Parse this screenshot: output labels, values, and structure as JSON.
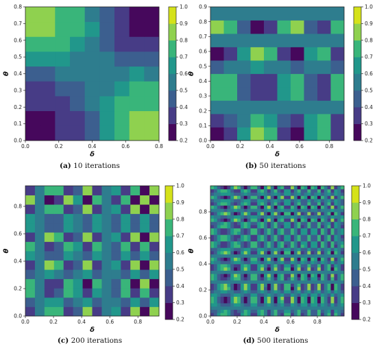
{
  "chart_data": [
    {
      "type": "heatmap",
      "caption_letter": "(a)",
      "caption_text": " 10 iterations",
      "xlabel": "δ",
      "ylabel": "θ",
      "xlim": [
        0,
        0.8
      ],
      "ylim": [
        0,
        0.8
      ],
      "x_ticks": [
        "0.0",
        "0.2",
        "0.4",
        "0.6",
        "0.8"
      ],
      "y_ticks": [
        "0.0",
        "0.1",
        "0.2",
        "0.3",
        "0.4",
        "0.5",
        "0.6",
        "0.7",
        "0.8"
      ],
      "colorbar_ticks": [
        "0.2",
        "0.3",
        "0.4",
        "0.5",
        "0.6",
        "0.7",
        "0.8",
        "0.9",
        "1.0"
      ],
      "colorbar_range": [
        0.2,
        1.0
      ],
      "cmap": "viridis",
      "grid_resolution": 10,
      "grid_size": 9
    },
    {
      "type": "heatmap",
      "caption_letter": "(b)",
      "caption_text": " 50 iterations",
      "xlabel": "δ",
      "ylabel": "θ",
      "xlim": [
        0,
        0.9
      ],
      "ylim": [
        0,
        0.9
      ],
      "x_ticks": [
        "0.0",
        "0.2",
        "0.4",
        "0.6",
        "0.8"
      ],
      "y_ticks": [
        "0.0",
        "0.1",
        "0.2",
        "0.3",
        "0.4",
        "0.5",
        "0.6",
        "0.7",
        "0.8",
        "0.9"
      ],
      "colorbar_ticks": [
        "0.2",
        "0.3",
        "0.4",
        "0.5",
        "0.6",
        "0.7",
        "0.8",
        "0.9",
        "1.0"
      ],
      "colorbar_range": [
        0.2,
        1.0
      ],
      "cmap": "viridis",
      "grid_resolution": 50,
      "grid_size": 10
    },
    {
      "type": "heatmap",
      "caption_letter": "(c)",
      "caption_text": " 200 iterations",
      "xlabel": "δ",
      "ylabel": "θ",
      "xlim": [
        0,
        0.95
      ],
      "ylim": [
        0,
        0.95
      ],
      "x_ticks": [
        "0.0",
        "0.2",
        "0.4",
        "0.6",
        "0.8"
      ],
      "y_ticks": [
        "0.0",
        "0.2",
        "0.4",
        "0.6",
        "0.8"
      ],
      "colorbar_ticks": [
        "0.2",
        "0.3",
        "0.4",
        "0.5",
        "0.6",
        "0.7",
        "0.8",
        "0.9",
        "1.0"
      ],
      "colorbar_range": [
        0.2,
        1.0
      ],
      "cmap": "viridis",
      "grid_resolution": 200,
      "grid_size": 14
    },
    {
      "type": "heatmap",
      "caption_letter": "(d)",
      "caption_text": " 500 iterations",
      "xlabel": "δ",
      "ylabel": "θ",
      "xlim": [
        0,
        1.0
      ],
      "ylim": [
        0,
        1.0
      ],
      "x_ticks": [
        "0.0",
        "0.2",
        "0.4",
        "0.6",
        "0.8"
      ],
      "y_ticks": [
        "0.0",
        "0.2",
        "0.4",
        "0.6",
        "0.8"
      ],
      "colorbar_ticks": [
        "0.2",
        "0.3",
        "0.4",
        "0.5",
        "0.6",
        "0.7",
        "0.8",
        "0.9",
        "1.0"
      ],
      "colorbar_range": [
        0.2,
        1.0
      ],
      "cmap": "viridis",
      "grid_resolution": 500,
      "grid_size": 40
    }
  ]
}
